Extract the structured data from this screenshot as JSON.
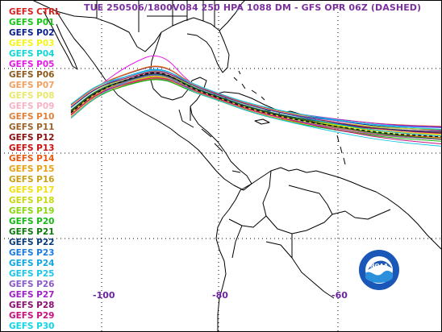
{
  "title": "TUE 250506/1800V084  250 HPA 1088 DM - GFS OPR 06Z (DASHED)",
  "logo": {
    "text": "NOAA",
    "colors": {
      "ring": "#1a57b8",
      "inner": "#ffffff",
      "wave": "#2b8fdb"
    }
  },
  "longitude_labels": [
    "-100",
    "-80",
    "-60"
  ],
  "colors": {
    "title": "#7b2fa0",
    "coast": "#000000",
    "grid": "#000000",
    "background": "#ffffff"
  },
  "legend": [
    {
      "label": "GEFS CTRL",
      "color": "#d62020"
    },
    {
      "label": "GEFS P01",
      "color": "#16c616"
    },
    {
      "label": "GEFS P02",
      "color": "#0a1f8f"
    },
    {
      "label": "GEFS P03",
      "color": "#f4f41a"
    },
    {
      "label": "GEFS P04",
      "color": "#10d6d6"
    },
    {
      "label": "GEFS P05",
      "color": "#e61ae6"
    },
    {
      "label": "GEFS P06",
      "color": "#8c5a1e"
    },
    {
      "label": "GEFS P07",
      "color": "#f0a060"
    },
    {
      "label": "GEFS P08",
      "color": "#e8e86a"
    },
    {
      "label": "GEFS P09",
      "color": "#f7b2c4"
    },
    {
      "label": "GEFS P10",
      "color": "#e0803a"
    },
    {
      "label": "GEFS P11",
      "color": "#9a6328"
    },
    {
      "label": "GEFS P12",
      "color": "#8a1010"
    },
    {
      "label": "GEFS P13",
      "color": "#c81010"
    },
    {
      "label": "GEFS P14",
      "color": "#e65a10"
    },
    {
      "label": "GEFS P15",
      "color": "#e6a010"
    },
    {
      "label": "GEFS P16",
      "color": "#c8a018"
    },
    {
      "label": "GEFS P17",
      "color": "#f0e010"
    },
    {
      "label": "GEFS P18",
      "color": "#c8d810"
    },
    {
      "label": "GEFS P19",
      "color": "#8cd610"
    },
    {
      "label": "GEFS P20",
      "color": "#16b816"
    },
    {
      "label": "GEFS P21",
      "color": "#0a7a0a"
    },
    {
      "label": "GEFS P22",
      "color": "#0a3a7a"
    },
    {
      "label": "GEFS P23",
      "color": "#1a7ae0"
    },
    {
      "label": "GEFS P24",
      "color": "#10a6e0"
    },
    {
      "label": "GEFS P25",
      "color": "#1ac6e6"
    },
    {
      "label": "GEFS P26",
      "color": "#8a5ac6"
    },
    {
      "label": "GEFS P27",
      "color": "#a020c8"
    },
    {
      "label": "GEFS P28",
      "color": "#8a1070"
    },
    {
      "label": "GEFS P29",
      "color": "#c81080"
    },
    {
      "label": "GEFS P30",
      "color": "#10d6e6"
    }
  ],
  "opr_color": "#000000"
}
